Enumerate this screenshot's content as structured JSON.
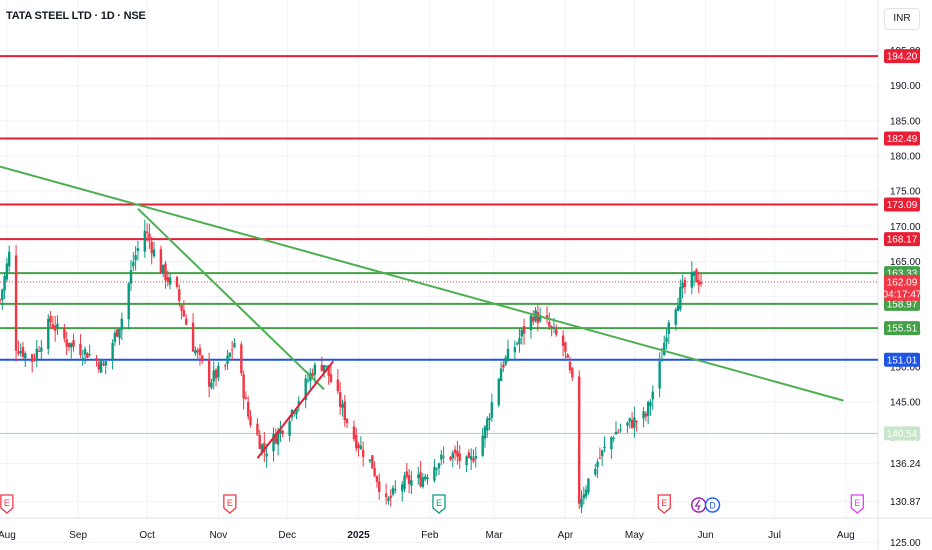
{
  "header": {
    "title": "TATA STEEL LTD · 1D · NSE",
    "currency": "INR"
  },
  "colors": {
    "up": "#089981",
    "down": "#f23645",
    "resistance": "#e91e35",
    "support": "#43a047",
    "pivot": "#1e53e5",
    "faint_support": "#a5d6a7",
    "trend": "#4caf50",
    "grid": "#f0f3fa",
    "axis_text": "#131722"
  },
  "chart_data": {
    "type": "candlestick",
    "y_axis": {
      "range": [
        128.5,
        196.5
      ],
      "ticks": [
        "195.00",
        "190.00",
        "185.00",
        "180.00",
        "175.00",
        "170.00",
        "165.00",
        "160.00",
        "155.00",
        "150.00",
        "145.00",
        "140.00",
        "136.24",
        "130.87",
        "125.00"
      ]
    },
    "x_axis": {
      "range": [
        "2024-07-29",
        "2025-08-15"
      ],
      "ticks": [
        {
          "date": "2024-08-01",
          "label": "Aug"
        },
        {
          "date": "2024-09-01",
          "label": "Sep"
        },
        {
          "date": "2024-10-01",
          "label": "Oct"
        },
        {
          "date": "2024-11-01",
          "label": "Nov"
        },
        {
          "date": "2024-12-01",
          "label": "Dec"
        },
        {
          "date": "2025-01-01",
          "label": "2025"
        },
        {
          "date": "2025-02-01",
          "label": "Feb"
        },
        {
          "date": "2025-03-01",
          "label": "Mar"
        },
        {
          "date": "2025-04-01",
          "label": "Apr"
        },
        {
          "date": "2025-05-01",
          "label": "May"
        },
        {
          "date": "2025-06-01",
          "label": "Jun"
        },
        {
          "date": "2025-07-01",
          "label": "Jul"
        },
        {
          "date": "2025-08-01",
          "label": "Aug"
        }
      ]
    },
    "price_path": [
      {
        "date": "2024-07-29",
        "price": 159.5
      },
      {
        "date": "2024-08-02",
        "price": 166.0
      },
      {
        "date": "2024-08-05",
        "price": 153.0
      },
      {
        "date": "2024-08-12",
        "price": 151.0
      },
      {
        "date": "2024-08-20",
        "price": 156.5
      },
      {
        "date": "2024-08-27",
        "price": 153.5
      },
      {
        "date": "2024-09-05",
        "price": 152.0
      },
      {
        "date": "2024-09-12",
        "price": 150.0
      },
      {
        "date": "2024-09-20",
        "price": 157.0
      },
      {
        "date": "2024-09-25",
        "price": 165.0
      },
      {
        "date": "2024-09-30",
        "price": 169.5
      },
      {
        "date": "2024-10-07",
        "price": 164.0
      },
      {
        "date": "2024-10-14",
        "price": 160.5
      },
      {
        "date": "2024-10-21",
        "price": 153.0
      },
      {
        "date": "2024-10-28",
        "price": 148.0
      },
      {
        "date": "2024-11-04",
        "price": 150.0
      },
      {
        "date": "2024-11-08",
        "price": 153.5
      },
      {
        "date": "2024-11-14",
        "price": 143.0
      },
      {
        "date": "2024-11-21",
        "price": 138.0
      },
      {
        "date": "2024-11-28",
        "price": 141.0
      },
      {
        "date": "2024-12-06",
        "price": 145.5
      },
      {
        "date": "2024-12-12",
        "price": 149.5
      },
      {
        "date": "2024-12-17",
        "price": 150.5
      },
      {
        "date": "2024-12-23",
        "price": 145.5
      },
      {
        "date": "2024-12-30",
        "price": 140.0
      },
      {
        "date": "2025-01-07",
        "price": 136.0
      },
      {
        "date": "2025-01-13",
        "price": 130.5
      },
      {
        "date": "2025-01-20",
        "price": 133.5
      },
      {
        "date": "2025-01-28",
        "price": 134.0
      },
      {
        "date": "2025-02-04",
        "price": 136.5
      },
      {
        "date": "2025-02-11",
        "price": 137.5
      },
      {
        "date": "2025-02-18",
        "price": 136.0
      },
      {
        "date": "2025-02-25",
        "price": 141.0
      },
      {
        "date": "2025-03-04",
        "price": 150.0
      },
      {
        "date": "2025-03-11",
        "price": 153.5
      },
      {
        "date": "2025-03-18",
        "price": 157.5
      },
      {
        "date": "2025-03-24",
        "price": 156.0
      },
      {
        "date": "2025-03-31",
        "price": 153.0
      },
      {
        "date": "2025-04-04",
        "price": 147.5
      },
      {
        "date": "2025-04-07",
        "price": 131.0
      },
      {
        "date": "2025-04-14",
        "price": 136.0
      },
      {
        "date": "2025-04-22",
        "price": 140.5
      },
      {
        "date": "2025-04-29",
        "price": 142.0
      },
      {
        "date": "2025-05-06",
        "price": 143.0
      },
      {
        "date": "2025-05-12",
        "price": 150.0
      },
      {
        "date": "2025-05-16",
        "price": 157.0
      },
      {
        "date": "2025-05-21",
        "price": 160.5
      },
      {
        "date": "2025-05-27",
        "price": 162.8
      },
      {
        "date": "2025-05-30",
        "price": 162.1
      }
    ],
    "horizontal_levels": [
      {
        "value": 194.2,
        "label": "194.20",
        "kind": "resistance"
      },
      {
        "value": 182.49,
        "label": "182.49",
        "kind": "resistance"
      },
      {
        "value": 173.09,
        "label": "173.09",
        "kind": "resistance"
      },
      {
        "value": 168.17,
        "label": "168.17",
        "kind": "resistance"
      },
      {
        "value": 163.33,
        "label": "163.33",
        "kind": "support"
      },
      {
        "value": 158.97,
        "label": "158.97",
        "kind": "support"
      },
      {
        "value": 155.51,
        "label": "155.51",
        "kind": "support"
      },
      {
        "value": 151.01,
        "label": "151.01",
        "kind": "pivot"
      },
      {
        "value": 140.54,
        "label": "140.54",
        "kind": "faint_support"
      }
    ],
    "last_price": {
      "value": 162.09,
      "label": "162.09",
      "countdown": "04:17:47"
    },
    "trendlines": [
      {
        "from": {
          "date": "2024-07-29",
          "price": 178.5
        },
        "to": {
          "date": "2025-07-31",
          "price": 145.2
        },
        "color": "trend"
      },
      {
        "from": {
          "date": "2024-09-27",
          "price": 172.5
        },
        "to": {
          "date": "2024-12-17",
          "price": 146.8
        },
        "color": "trend"
      },
      {
        "from": {
          "date": "2024-11-18",
          "price": 137.0
        },
        "to": {
          "date": "2024-12-21",
          "price": 150.8
        },
        "color": "resistance"
      }
    ],
    "events": [
      {
        "date": "2024-08-01",
        "kind": "earnings",
        "label": "E"
      },
      {
        "date": "2024-11-06",
        "kind": "earnings",
        "label": "E"
      },
      {
        "date": "2025-02-05",
        "kind": "earnings",
        "label": "E",
        "highlight": true
      },
      {
        "date": "2025-05-14",
        "kind": "earnings",
        "label": "E"
      },
      {
        "date": "2025-05-29",
        "kind": "split",
        "label": ""
      },
      {
        "date": "2025-06-04",
        "kind": "dividend",
        "label": "D"
      },
      {
        "date": "2025-08-06",
        "kind": "earnings",
        "label": "E",
        "color": "purple"
      }
    ]
  }
}
